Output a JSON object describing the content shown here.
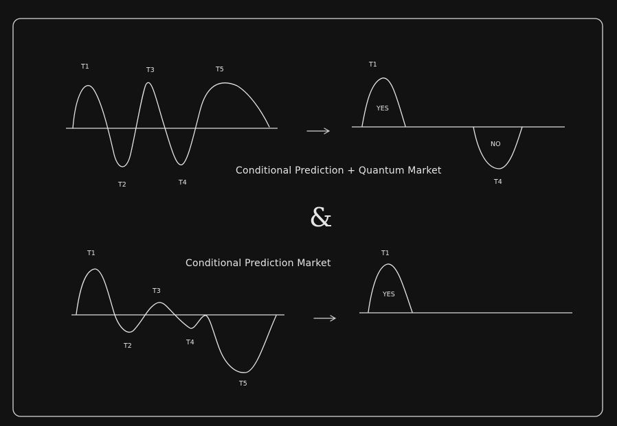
{
  "top": {
    "caption": "Conditional Prediction + Quantum Market",
    "left_labels": {
      "t1": "T1",
      "t2": "T2",
      "t3": "T3",
      "t4": "T4",
      "t5": "T5"
    },
    "right_labels": {
      "t1": "T1",
      "yes": "YES",
      "no": "NO",
      "t4": "T4"
    }
  },
  "ampersand": "&",
  "bottom": {
    "caption": "Conditional Prediction Market",
    "left_labels": {
      "t1": "T1",
      "t2": "T2",
      "t3": "T3",
      "t4": "T4",
      "t5": "T5"
    },
    "right_labels": {
      "t1": "T1",
      "yes": "YES"
    }
  },
  "arrow_icon": "arrow-right-icon",
  "colors": {
    "background": "#121212",
    "stroke": "#e6e6e6"
  }
}
